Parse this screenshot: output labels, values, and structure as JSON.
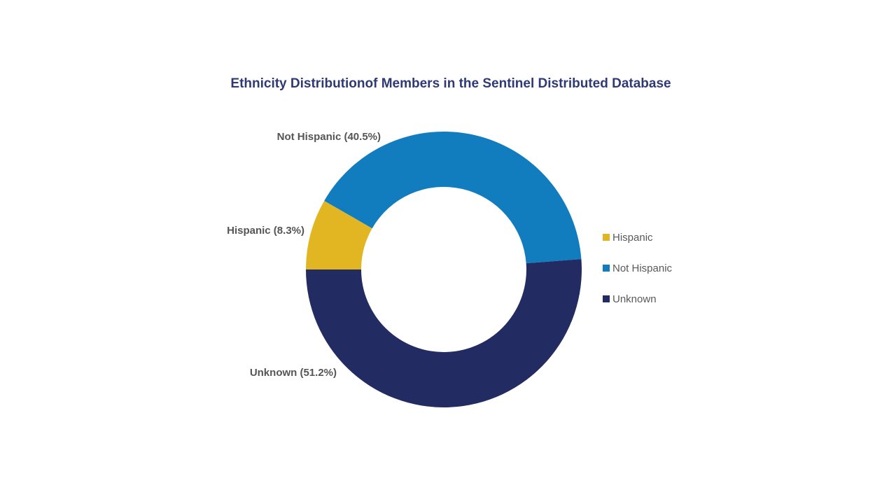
{
  "chart_data": {
    "type": "pie",
    "variant": "donut",
    "title": "Ethnicity Distributionof Members in the Sentinel Distributed Database",
    "legend_position": "right",
    "slices": [
      {
        "name": "Hispanic",
        "value": 8.3,
        "label": "Hispanic (8.3%)",
        "color": "#e2b623"
      },
      {
        "name": "Not Hispanic",
        "value": 40.5,
        "label": "Not Hispanic (40.5%)",
        "color": "#127dbe"
      },
      {
        "name": "Unknown",
        "value": 51.2,
        "label": "Unknown (51.2%)",
        "color": "#232b63"
      }
    ],
    "legend": [
      {
        "name": "Hispanic",
        "color": "#e2b623"
      },
      {
        "name": "Not Hispanic",
        "color": "#127dbe"
      },
      {
        "name": "Unknown",
        "color": "#232b63"
      }
    ]
  }
}
